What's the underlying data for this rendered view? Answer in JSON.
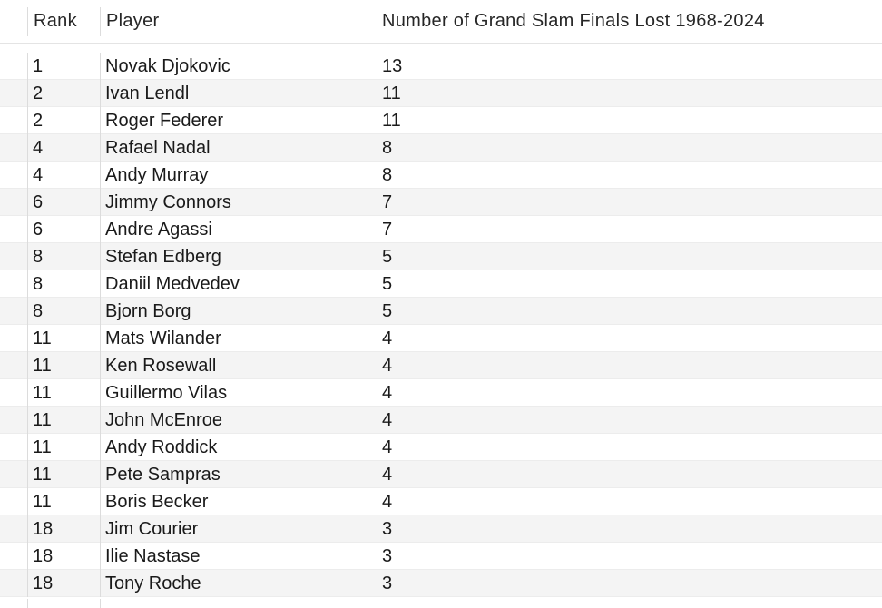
{
  "table": {
    "headers": {
      "rank": "Rank",
      "player": "Player",
      "finals_lost": "Number of Grand Slam Finals Lost 1968-2024"
    },
    "rows": [
      {
        "rank": "1",
        "player": "Novak Djokovic",
        "finals_lost": "13"
      },
      {
        "rank": "2",
        "player": "Ivan Lendl",
        "finals_lost": "11"
      },
      {
        "rank": "2",
        "player": "Roger Federer",
        "finals_lost": "11"
      },
      {
        "rank": "4",
        "player": "Rafael Nadal",
        "finals_lost": "8"
      },
      {
        "rank": "4",
        "player": "Andy Murray",
        "finals_lost": "8"
      },
      {
        "rank": "6",
        "player": "Jimmy Connors",
        "finals_lost": "7"
      },
      {
        "rank": "6",
        "player": "Andre Agassi",
        "finals_lost": "7"
      },
      {
        "rank": "8",
        "player": "Stefan Edberg",
        "finals_lost": "5"
      },
      {
        "rank": "8",
        "player": "Daniil Medvedev",
        "finals_lost": "5"
      },
      {
        "rank": "8",
        "player": "Bjorn Borg",
        "finals_lost": "5"
      },
      {
        "rank": "11",
        "player": "Mats Wilander",
        "finals_lost": "4"
      },
      {
        "rank": "11",
        "player": "Ken Rosewall",
        "finals_lost": "4"
      },
      {
        "rank": "11",
        "player": "Guillermo Vilas",
        "finals_lost": "4"
      },
      {
        "rank": "11",
        "player": "John McEnroe",
        "finals_lost": "4"
      },
      {
        "rank": "11",
        "player": "Andy Roddick",
        "finals_lost": "4"
      },
      {
        "rank": "11",
        "player": "Pete Sampras",
        "finals_lost": "4"
      },
      {
        "rank": "11",
        "player": "Boris Becker",
        "finals_lost": "4"
      },
      {
        "rank": "18",
        "player": "Jim Courier",
        "finals_lost": "3"
      },
      {
        "rank": "18",
        "player": "Ilie Nastase",
        "finals_lost": "3"
      },
      {
        "rank": "18",
        "player": "Tony Roche",
        "finals_lost": "3"
      }
    ]
  }
}
